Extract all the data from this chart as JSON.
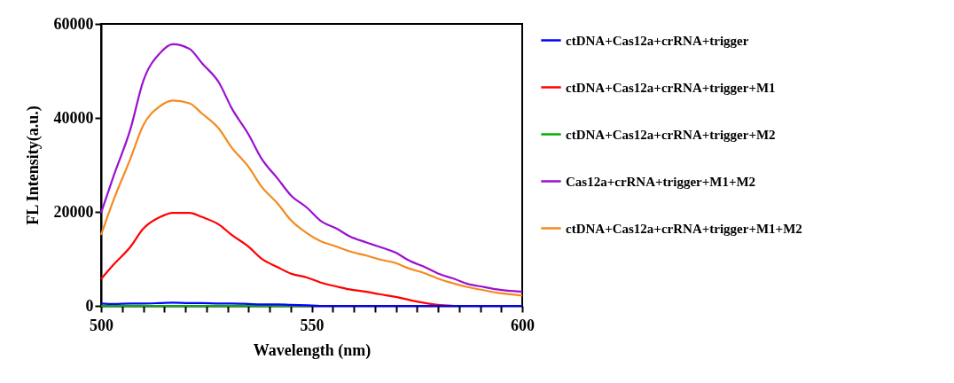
{
  "chart_data": {
    "type": "line",
    "xlabel": "Wavelength (nm)",
    "ylabel": "FL Intensity(a.u.)",
    "x": [
      500,
      503,
      507,
      510,
      514,
      517,
      521,
      524,
      528,
      531,
      535,
      538,
      542,
      545,
      549,
      552,
      556,
      559,
      563,
      566,
      570,
      573,
      577,
      580,
      584,
      587,
      591,
      594,
      600
    ],
    "series": [
      {
        "name": "ctDNA+Cas12a+crRNA+trigger",
        "color": "#0000ff",
        "values": [
          500,
          400,
          500,
          500,
          600,
          700,
          600,
          600,
          500,
          500,
          400,
          300,
          300,
          200,
          100,
          0,
          0,
          0,
          0,
          0,
          0,
          0,
          0,
          0,
          0,
          0,
          0,
          0,
          0
        ]
      },
      {
        "name": "ctDNA+Cas12a+crRNA+trigger+M1",
        "color": "#ff0000",
        "values": [
          5700,
          8800,
          12600,
          16400,
          18900,
          19800,
          19800,
          18900,
          17300,
          15100,
          12600,
          10100,
          8200,
          6900,
          6000,
          5000,
          4100,
          3500,
          3000,
          2500,
          1900,
          1300,
          600,
          200,
          0,
          null,
          null,
          null,
          null
        ]
      },
      {
        "name": "ctDNA+Cas12a+crRNA+trigger+M2",
        "color": "#00b000",
        "values": [
          0,
          0,
          0,
          0,
          0,
          0,
          0,
          0,
          0,
          0,
          0,
          0,
          0,
          0,
          0,
          0,
          null,
          null,
          null,
          null,
          null,
          null,
          null,
          null,
          null,
          null,
          null,
          null,
          null
        ]
      },
      {
        "name": "Cas12a+crRNA+trigger+M1+M2",
        "color": "#9b10d0",
        "values": [
          19800,
          27700,
          37700,
          47800,
          53800,
          55700,
          54700,
          51600,
          47500,
          42100,
          36500,
          31500,
          27000,
          23600,
          20800,
          18200,
          16400,
          14800,
          13500,
          12600,
          11300,
          9700,
          8200,
          6900,
          5700,
          4700,
          4000,
          3500,
          3000
        ]
      },
      {
        "name": "ctDNA+Cas12a+crRNA+trigger+M1+M2",
        "color": "#f58a1f",
        "values": [
          15100,
          22600,
          31400,
          38400,
          42500,
          43700,
          43100,
          40900,
          37700,
          33700,
          29600,
          25500,
          21700,
          18300,
          15400,
          13800,
          12600,
          11600,
          10700,
          9900,
          9100,
          8000,
          6900,
          5800,
          4700,
          4000,
          3300,
          2800,
          2200
        ]
      }
    ],
    "xlim": [
      500,
      600
    ],
    "xticks": [
      500,
      {
        "value": 505,
        "label": null
      },
      {
        "value": 510,
        "label": null
      },
      {
        "value": 515,
        "label": null
      },
      {
        "value": 520,
        "label": null
      },
      {
        "value": 525,
        "label": null
      },
      {
        "value": 530,
        "label": null
      },
      {
        "value": 535,
        "label": null
      },
      {
        "value": 540,
        "label": null
      },
      {
        "value": 545,
        "label": null
      },
      550,
      {
        "value": 555,
        "label": null
      },
      {
        "value": 560,
        "label": null
      },
      {
        "value": 565,
        "label": null
      },
      {
        "value": 570,
        "label": null
      },
      {
        "value": 575,
        "label": null
      },
      {
        "value": 580,
        "label": null
      },
      {
        "value": 585,
        "label": null
      },
      {
        "value": 590,
        "label": null
      },
      {
        "value": 595,
        "label": null
      },
      600
    ],
    "ylim": [
      0,
      60000
    ],
    "yticks": [
      0,
      20000,
      40000,
      60000
    ],
    "grid": false,
    "legend": "right",
    "marker": "none",
    "line_style": "solid"
  }
}
